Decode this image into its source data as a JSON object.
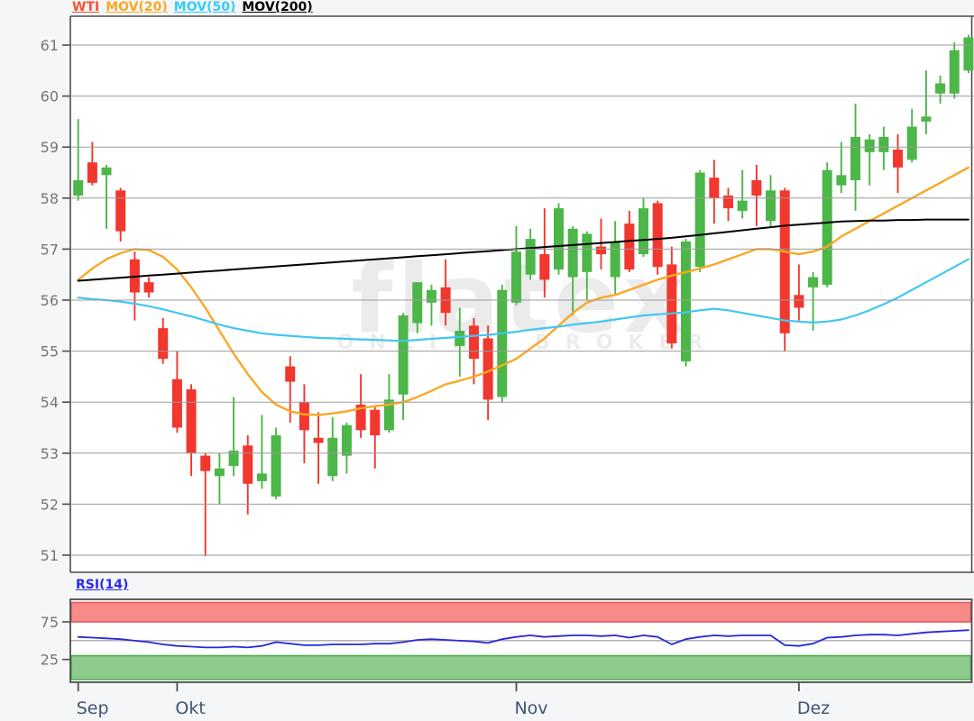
{
  "legend": {
    "items": [
      {
        "label": "WTI",
        "color": "#ff4f30"
      },
      {
        "label": "MOV(20)",
        "color": "#f9a825"
      },
      {
        "label": "MOV(50)",
        "color": "#35ccff"
      },
      {
        "label": "MOV(200)",
        "color": "#000000"
      }
    ]
  },
  "watermark": {
    "line1": "flatex",
    "line2": "ONLINE BROKER"
  },
  "colors": {
    "candle_up": "#4cb648",
    "candle_down": "#f1372e",
    "mov20": "#f9a825",
    "mov50": "#41c7f2",
    "mov200": "#000000",
    "rsi_line": "#2929d6",
    "rsi_label": "#2b2bee",
    "overbought_fill": "#f88a8a",
    "overbought_edge": "#e05c5c",
    "oversold_fill": "#8fcb8d",
    "oversold_edge": "#4faf4f",
    "axis_text": "#767676",
    "month_text": "#3f5570",
    "grid": "#9b9b9b",
    "panel_border": "#4d4d4d",
    "rsi_midline": "#aaaaaa",
    "plot_bg": "#ffffff"
  },
  "chart_data": [
    {
      "type": "candlestick",
      "title": "WTI",
      "ylim": [
        50.6,
        61.55
      ],
      "y_ticks": [
        61,
        60,
        59,
        58,
        57,
        56,
        55,
        54,
        53,
        52,
        51
      ],
      "grid": true,
      "legend_position": "top-left",
      "x_tick_labels": [
        "Sep",
        "Okt",
        "Nov",
        "Dez"
      ],
      "x_tick_indices": [
        0,
        7,
        31,
        51
      ],
      "open": [
        58.05,
        58.7,
        58.45,
        58.15,
        56.8,
        56.35,
        55.45,
        54.45,
        54.25,
        52.95,
        52.55,
        52.75,
        53.15,
        52.45,
        52.15,
        54.7,
        54.0,
        53.3,
        52.55,
        52.95,
        53.95,
        53.85,
        53.45,
        54.15,
        55.55,
        55.95,
        56.25,
        55.1,
        55.5,
        55.25,
        54.1,
        55.95,
        56.5,
        56.9,
        56.6,
        56.45,
        56.55,
        57.05,
        56.45,
        57.5,
        56.9,
        57.9,
        56.7,
        54.8,
        56.65,
        58.4,
        58.05,
        57.75,
        58.35,
        57.55,
        58.15,
        56.1,
        56.25,
        56.3,
        58.25,
        58.35,
        58.9,
        58.9,
        58.95,
        58.75,
        59.5,
        60.05,
        60.05,
        60.5
      ],
      "high": [
        59.55,
        59.1,
        58.65,
        58.2,
        56.95,
        56.45,
        55.65,
        55.0,
        54.35,
        53.0,
        53.0,
        54.1,
        53.35,
        53.75,
        53.5,
        54.9,
        54.35,
        53.8,
        53.7,
        53.6,
        54.55,
        53.9,
        54.55,
        55.75,
        56.35,
        56.3,
        56.8,
        55.85,
        55.65,
        55.5,
        56.3,
        57.45,
        57.4,
        57.8,
        57.9,
        57.45,
        57.35,
        57.6,
        57.55,
        57.75,
        58.0,
        57.95,
        57.05,
        57.2,
        58.55,
        58.75,
        58.2,
        58.55,
        58.65,
        58.45,
        58.2,
        56.7,
        56.55,
        58.7,
        59.1,
        59.85,
        59.25,
        59.4,
        59.25,
        59.75,
        60.5,
        60.4,
        61.05,
        61.2
      ],
      "low": [
        57.95,
        58.25,
        57.4,
        57.15,
        55.6,
        56.05,
        54.75,
        53.4,
        52.55,
        50.98,
        52.0,
        52.55,
        51.8,
        52.3,
        52.1,
        53.6,
        52.8,
        52.4,
        52.45,
        52.6,
        53.3,
        52.7,
        53.4,
        53.65,
        55.35,
        55.5,
        55.5,
        54.5,
        54.35,
        53.65,
        54.0,
        55.9,
        56.4,
        56.05,
        56.5,
        55.7,
        56.0,
        56.6,
        56.1,
        56.55,
        56.85,
        56.5,
        55.05,
        54.7,
        56.55,
        57.5,
        57.55,
        57.6,
        57.45,
        57.45,
        55.0,
        55.6,
        55.4,
        56.25,
        58.1,
        57.75,
        58.25,
        58.55,
        58.1,
        58.7,
        59.25,
        59.85,
        59.95,
        60.45
      ],
      "close": [
        58.35,
        58.3,
        58.6,
        57.35,
        56.15,
        56.15,
        54.85,
        53.5,
        53.0,
        52.65,
        52.7,
        53.05,
        52.4,
        52.6,
        53.35,
        54.4,
        53.45,
        53.2,
        53.3,
        53.55,
        53.45,
        53.35,
        54.05,
        55.7,
        56.35,
        56.2,
        55.75,
        55.4,
        54.85,
        54.05,
        56.2,
        56.95,
        57.2,
        56.4,
        57.8,
        57.4,
        57.3,
        56.9,
        57.15,
        56.6,
        57.8,
        56.65,
        55.15,
        57.15,
        58.5,
        58.0,
        57.8,
        57.95,
        58.05,
        58.15,
        55.35,
        55.85,
        56.45,
        58.55,
        58.45,
        59.2,
        59.15,
        59.2,
        58.6,
        59.4,
        59.6,
        60.25,
        60.9,
        61.15
      ],
      "overlays": [
        {
          "name": "MOV(20)",
          "color": "#f9a825",
          "values": [
            56.4,
            56.62,
            56.8,
            56.92,
            57.0,
            56.98,
            56.85,
            56.6,
            56.25,
            55.85,
            55.4,
            54.95,
            54.55,
            54.2,
            53.95,
            53.82,
            53.76,
            53.75,
            53.78,
            53.82,
            53.88,
            53.92,
            53.95,
            54.0,
            54.1,
            54.22,
            54.35,
            54.42,
            54.5,
            54.6,
            54.72,
            54.85,
            55.05,
            55.25,
            55.5,
            55.75,
            55.95,
            56.05,
            56.1,
            56.2,
            56.3,
            56.4,
            56.48,
            56.55,
            56.62,
            56.7,
            56.8,
            56.9,
            57.0,
            57.0,
            56.95,
            56.9,
            56.95,
            57.05,
            57.25,
            57.4,
            57.55,
            57.7,
            57.85,
            58.0,
            58.15,
            58.3,
            58.45,
            58.6
          ]
        },
        {
          "name": "MOV(50)",
          "color": "#41c7f2",
          "values": [
            56.05,
            56.02,
            56.0,
            55.97,
            55.93,
            55.88,
            55.82,
            55.75,
            55.68,
            55.6,
            55.52,
            55.45,
            55.4,
            55.35,
            55.32,
            55.3,
            55.28,
            55.26,
            55.25,
            55.24,
            55.23,
            55.22,
            55.21,
            55.2,
            55.22,
            55.24,
            55.26,
            55.28,
            55.3,
            55.32,
            55.35,
            55.38,
            55.42,
            55.45,
            55.48,
            55.52,
            55.55,
            55.58,
            55.62,
            55.66,
            55.7,
            55.72,
            55.74,
            55.76,
            55.8,
            55.83,
            55.8,
            55.75,
            55.7,
            55.65,
            55.6,
            55.58,
            55.56,
            55.58,
            55.62,
            55.7,
            55.8,
            55.92,
            56.05,
            56.2,
            56.35,
            56.5,
            56.65,
            56.8
          ]
        },
        {
          "name": "MOV(200)",
          "color": "#000000",
          "values": [
            56.38,
            56.4,
            56.42,
            56.44,
            56.46,
            56.48,
            56.5,
            56.52,
            56.54,
            56.56,
            56.58,
            56.6,
            56.62,
            56.64,
            56.66,
            56.68,
            56.7,
            56.72,
            56.74,
            56.76,
            56.78,
            56.8,
            56.82,
            56.84,
            56.86,
            56.88,
            56.9,
            56.92,
            56.94,
            56.96,
            56.98,
            57.0,
            57.02,
            57.04,
            57.06,
            57.08,
            57.1,
            57.12,
            57.14,
            57.16,
            57.18,
            57.2,
            57.22,
            57.25,
            57.28,
            57.31,
            57.34,
            57.37,
            57.4,
            57.43,
            57.46,
            57.48,
            57.5,
            57.52,
            57.54,
            57.55,
            57.56,
            57.56,
            57.57,
            57.57,
            57.58,
            57.58,
            57.58,
            57.58
          ]
        }
      ]
    },
    {
      "type": "line",
      "title": "RSI(14)",
      "ylim": [
        0,
        100
      ],
      "y_ticks": [
        75,
        25
      ],
      "midline": 50,
      "bands": [
        {
          "role": "overbought",
          "range": [
            75,
            100
          ]
        },
        {
          "role": "oversold",
          "range": [
            0,
            30
          ]
        }
      ],
      "values": [
        55,
        54,
        53,
        52,
        50,
        48,
        45,
        43,
        42,
        41,
        41,
        42,
        41,
        43,
        48,
        46,
        44,
        44,
        45,
        45,
        45,
        46,
        46,
        48,
        51,
        52,
        51,
        50,
        49,
        47,
        52,
        55,
        57,
        55,
        56,
        57,
        57,
        56,
        57,
        54,
        57,
        55,
        45,
        52,
        55,
        57,
        56,
        57,
        57,
        57,
        44,
        43,
        46,
        54,
        55,
        57,
        58,
        58,
        57,
        59,
        61,
        62,
        63,
        64
      ]
    }
  ]
}
